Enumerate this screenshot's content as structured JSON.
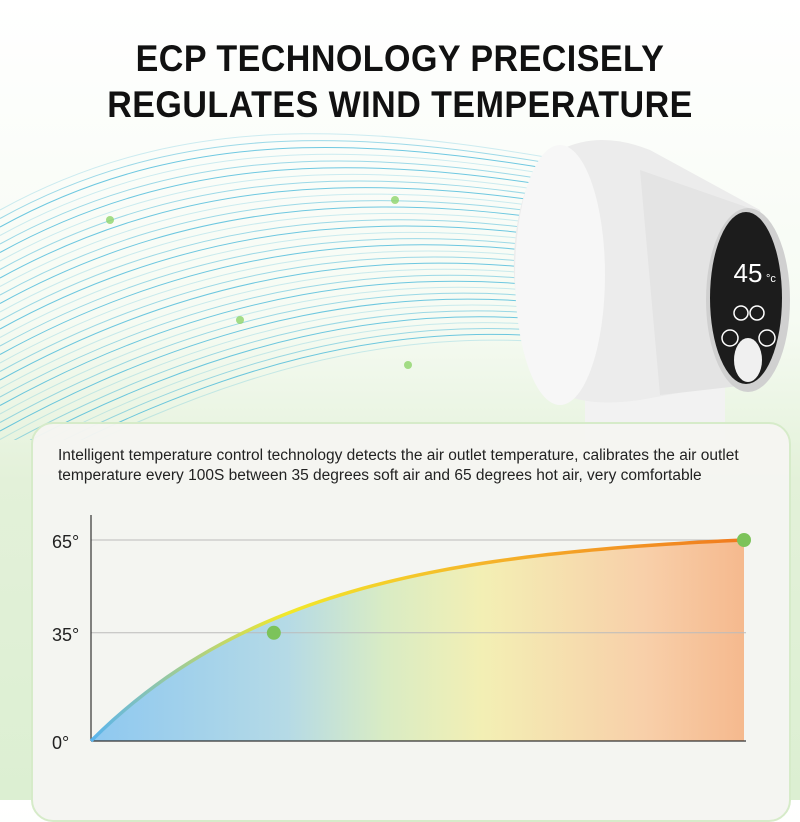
{
  "header": {
    "title_line1": "ECP TECHNOLOGY PRECISELY",
    "title_line2": "REGULATES WIND TEMPERATURE"
  },
  "description": "Intelligent temperature control technology detects the air outlet temperature, calibrates the air outlet temperature every 100S between 35 degrees soft air and 65 degrees hot air, very comfortable",
  "product": {
    "display_value": "45",
    "display_unit": "°c"
  },
  "colors": {
    "wind": "#3fb6d8",
    "accent_dot": "#7cc35a",
    "curve_start": "#5ab4ee",
    "curve_mid": "#f2e82a",
    "curve_end": "#f07a1e"
  },
  "chart_data": {
    "type": "area",
    "title": "",
    "xlabel": "",
    "ylabel": "",
    "yticks": [
      "0°",
      "35°",
      "65°"
    ],
    "ytick_values": [
      0,
      35,
      65
    ],
    "ylim": [
      0,
      65
    ],
    "grid": "horizontal at 35 and 65",
    "curve": "rising, saturating",
    "points": [
      {
        "x_fraction": 0,
        "y": 0
      },
      {
        "x_fraction": 0.28,
        "y": 35,
        "marker": true
      },
      {
        "x_fraction": 1,
        "y": 65,
        "marker": true
      }
    ]
  }
}
